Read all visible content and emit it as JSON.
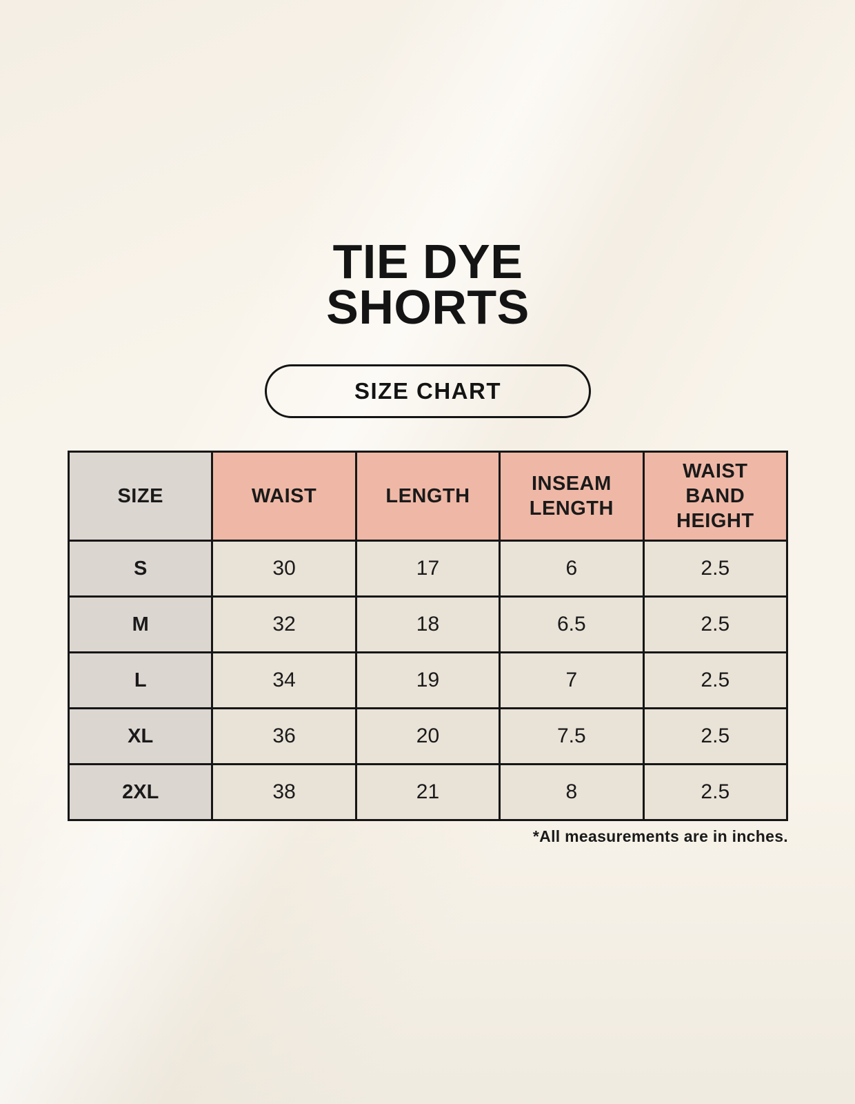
{
  "page": {
    "title": "TIE DYE\nSHORTS",
    "badge_label": "SIZE CHART",
    "footnote": "*All measurements are in inches."
  },
  "chart_data": {
    "type": "table",
    "title": "TIE DYE SHORTS — SIZE CHART",
    "units": "inches",
    "columns": [
      "SIZE",
      "WAIST",
      "LENGTH",
      "INSEAM\nLENGTH",
      "WAIST\nBAND\nHEIGHT"
    ],
    "rows": [
      [
        "S",
        "30",
        "17",
        "6",
        "2.5"
      ],
      [
        "M",
        "32",
        "18",
        "6.5",
        "2.5"
      ],
      [
        "L",
        "34",
        "19",
        "7",
        "2.5"
      ],
      [
        "XL",
        "36",
        "20",
        "7.5",
        "2.5"
      ],
      [
        "2XL",
        "38",
        "21",
        "8",
        "2.5"
      ]
    ]
  },
  "colors": {
    "background": "#f9f4eb",
    "header_accent": "#efb8a6",
    "size_column": "#dcd6d1",
    "data_cell": "#e9e2d7",
    "border": "#161616",
    "text": "#1a1a1a"
  }
}
